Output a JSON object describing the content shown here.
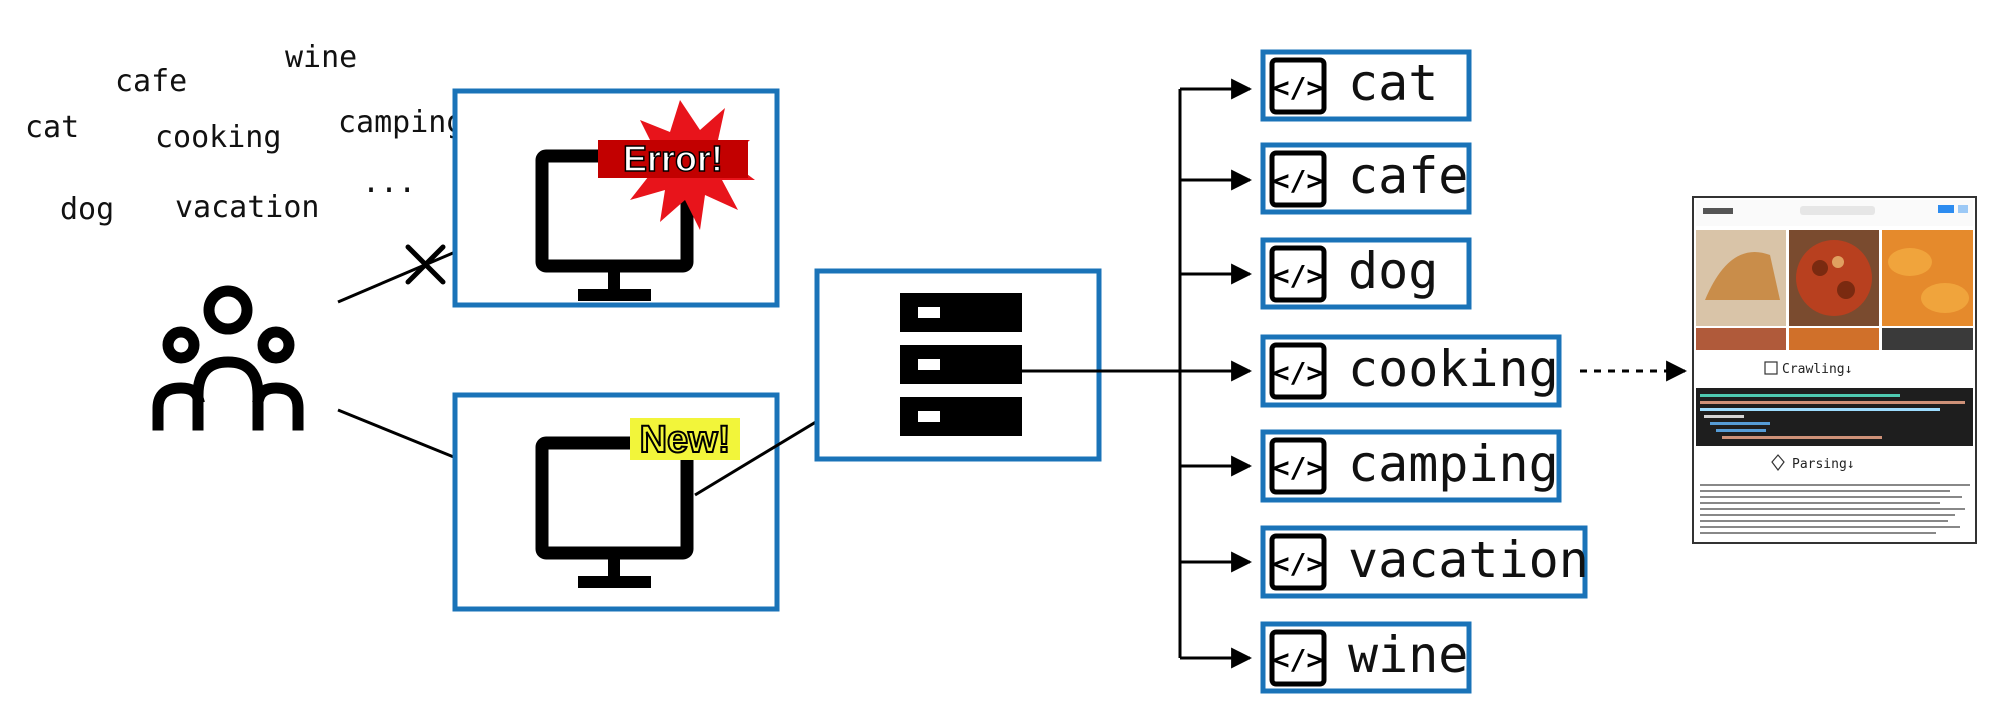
{
  "keywords": [
    "wine",
    "cafe",
    "cat",
    "cooking",
    "camping",
    "dog",
    "vacation",
    "..."
  ],
  "badges": {
    "error": "Error!",
    "new": "New!"
  },
  "targets": [
    "cat",
    "cafe",
    "dog",
    "cooking",
    "camping",
    "vacation",
    "wine"
  ],
  "screenshot": {
    "crawl_label": "Crawling↓",
    "parse_label": "Parsing↓"
  },
  "colors": {
    "box_border": "#1a73b8",
    "error_burst": "#e8141b",
    "new_bg": "#f2f53a"
  }
}
